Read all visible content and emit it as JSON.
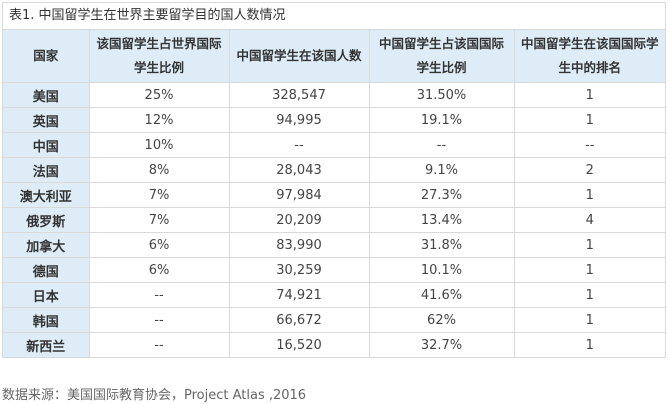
{
  "caption": "表1. 中国留学生在世界主要留学目的国人数情况",
  "headers": [
    "国家",
    "该国留学生占世界国际学生比例",
    "中国留学生在该国人数",
    "中国留学生占该国国际学生比例",
    "中国留学生在该国国际学生中的排名"
  ],
  "rows": [
    [
      "美国",
      "25%",
      "328,547",
      "31.50%",
      "1"
    ],
    [
      "英国",
      "12%",
      "94,995",
      "19.1%",
      "1"
    ],
    [
      "中国",
      "10%",
      "--",
      "--",
      "--"
    ],
    [
      "法国",
      "8%",
      "28,043",
      "9.1%",
      "2"
    ],
    [
      "澳大利亚",
      "7%",
      "97,984",
      "27.3%",
      "1"
    ],
    [
      "俄罗斯",
      "7%",
      "20,209",
      "13.4%",
      "4"
    ],
    [
      "加拿大",
      "6%",
      "83,990",
      "31.8%",
      "1"
    ],
    [
      "德国",
      "6%",
      "30,259",
      "10.1%",
      "1"
    ],
    [
      "日本",
      "--",
      "74,921",
      "41.6%",
      "1"
    ],
    [
      "韩国",
      "--",
      "66,672",
      "62%",
      "1"
    ],
    [
      "新西兰",
      "--",
      "16,520",
      "32.7%",
      "1"
    ]
  ],
  "source": "数据来源：美国国际教育协会，Project Atlas ,2016",
  "colors": {
    "header_bg": "#ddecf6",
    "border": "#d9d9d9"
  }
}
